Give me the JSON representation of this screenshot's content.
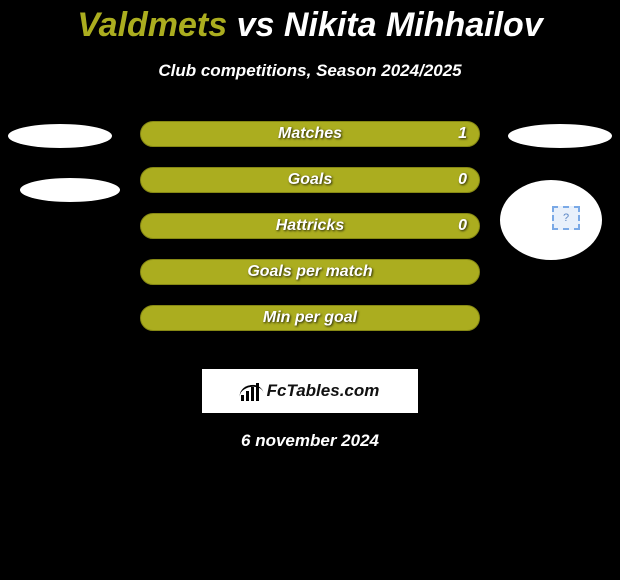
{
  "background_color": "#000000",
  "accent_color": "#abad1f",
  "text_color": "#ffffff",
  "header": {
    "title_player1": "Valdmets",
    "title_vs": "vs",
    "title_player2": "Nikita Mihhailov",
    "subtitle": "Club competitions, Season 2024/2025"
  },
  "stats": {
    "bar_color": "#abad1f",
    "bar_border_color": "#868814",
    "label_color": "#ffffff",
    "label_fontsize": 16,
    "rows": [
      {
        "label": "Matches",
        "value": "1"
      },
      {
        "label": "Goals",
        "value": "0"
      },
      {
        "label": "Hattricks",
        "value": "0"
      },
      {
        "label": "Goals per match",
        "value": ""
      },
      {
        "label": "Min per goal",
        "value": ""
      }
    ]
  },
  "logo": {
    "text": "FcTables.com"
  },
  "footer": {
    "date": "6 november 2024"
  },
  "badge": {
    "glyph": "?"
  }
}
